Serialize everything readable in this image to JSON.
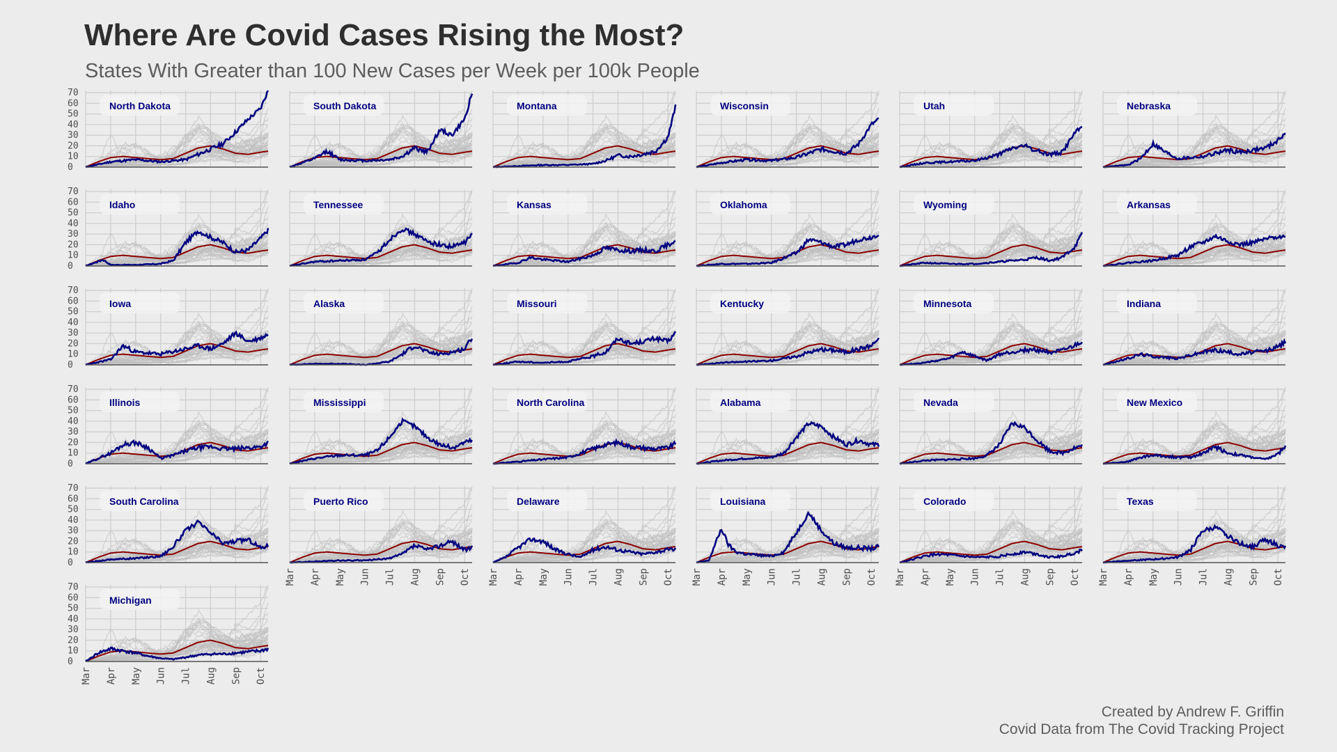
{
  "title": "Where Are Covid Cases Rising the Most?",
  "subtitle": "States With Greater than 100 New Cases per Week per 100k People",
  "caption": {
    "line1": "Created by Andrew F. Griffin",
    "line2": "Covid Data from The Covid Tracking Project"
  },
  "chart_data": {
    "type": "line",
    "facet": "small-multiples",
    "ylim": [
      0,
      72
    ],
    "y_ticks": [
      0,
      10,
      20,
      30,
      40,
      50,
      60,
      70
    ],
    "x_ticks": [
      "Mar",
      "Apr",
      "May",
      "Jun",
      "Jul",
      "Aug",
      "Sep",
      "Oct"
    ],
    "grid": true,
    "colors": {
      "highlight": "#000080",
      "average": "#8b0000",
      "background_states": "#bdbdbd",
      "panel_label_box": "#f3f3f3"
    },
    "states": [
      {
        "name": "North Dakota",
        "x": [
          0,
          1,
          2,
          3,
          4,
          4.5,
          5,
          5.5,
          6,
          6.5,
          7,
          7.3
        ],
        "values": [
          0,
          5,
          7,
          5,
          7,
          12,
          17,
          22,
          33,
          45,
          55,
          72
        ]
      },
      {
        "name": "South Dakota",
        "x": [
          0,
          1,
          1.5,
          2,
          3,
          4,
          4.5,
          5,
          5.5,
          6,
          6.5,
          7,
          7.3
        ],
        "values": [
          0,
          8,
          15,
          7,
          6,
          7,
          10,
          18,
          14,
          35,
          30,
          45,
          70
        ]
      },
      {
        "name": "Montana",
        "x": [
          0,
          1,
          2,
          3,
          4,
          4.5,
          5,
          5.5,
          6,
          6.5,
          7,
          7.3
        ],
        "values": [
          0,
          1,
          2,
          2,
          3,
          6,
          11,
          10,
          12,
          15,
          28,
          57
        ]
      },
      {
        "name": "Wisconsin",
        "x": [
          0,
          1,
          2,
          3,
          4,
          5,
          5.5,
          6,
          6.5,
          7,
          7.3
        ],
        "values": [
          0,
          4,
          7,
          6,
          9,
          17,
          15,
          13,
          22,
          40,
          45
        ]
      },
      {
        "name": "Utah",
        "x": [
          0,
          1,
          2,
          3,
          4,
          4.5,
          5,
          5.5,
          6,
          6.5,
          7,
          7.3
        ],
        "values": [
          0,
          4,
          5,
          6,
          12,
          18,
          20,
          15,
          12,
          14,
          32,
          38
        ]
      },
      {
        "name": "Nebraska",
        "x": [
          0,
          1,
          1.5,
          2,
          2.5,
          3,
          4,
          5,
          5.5,
          6,
          6.5,
          7,
          7.3
        ],
        "values": [
          0,
          2,
          8,
          22,
          14,
          8,
          10,
          16,
          14,
          16,
          18,
          25,
          33
        ]
      },
      {
        "name": "Idaho",
        "x": [
          0,
          0.7,
          1,
          2,
          3,
          3.5,
          4,
          4.5,
          5,
          5.5,
          6,
          6.5,
          7,
          7.3
        ],
        "values": [
          0,
          6,
          1,
          1,
          2,
          5,
          22,
          33,
          27,
          22,
          13,
          15,
          26,
          34
        ]
      },
      {
        "name": "Tennessee",
        "x": [
          0,
          1,
          2,
          3,
          3.5,
          4,
          4.5,
          5,
          5.5,
          6,
          6.5,
          7,
          7.3
        ],
        "values": [
          0,
          4,
          5,
          6,
          12,
          25,
          35,
          30,
          23,
          20,
          18,
          22,
          30
        ]
      },
      {
        "name": "Kansas",
        "x": [
          0,
          1,
          1.5,
          2,
          3,
          4,
          4.5,
          5,
          5.5,
          6,
          6.5,
          7,
          7.3
        ],
        "values": [
          0,
          3,
          8,
          6,
          4,
          10,
          17,
          15,
          14,
          15,
          14,
          20,
          24
        ]
      },
      {
        "name": "Oklahoma",
        "x": [
          0,
          1,
          2,
          3,
          4,
          4.5,
          5,
          5.5,
          6,
          6.5,
          7,
          7.3
        ],
        "values": [
          0,
          2,
          2,
          3,
          12,
          25,
          22,
          18,
          20,
          25,
          27,
          30
        ]
      },
      {
        "name": "Wyoming",
        "x": [
          0,
          1,
          2,
          3,
          4,
          4.5,
          5,
          5.5,
          6,
          6.5,
          7,
          7.3
        ],
        "values": [
          0,
          3,
          2,
          2,
          4,
          5,
          6,
          8,
          5,
          8,
          18,
          30
        ]
      },
      {
        "name": "Arkansas",
        "x": [
          0,
          1,
          2,
          3,
          3.5,
          4,
          4.5,
          5,
          5.5,
          6,
          6.5,
          7,
          7.3
        ],
        "values": [
          0,
          3,
          5,
          10,
          18,
          22,
          28,
          23,
          20,
          22,
          25,
          28,
          27
        ]
      },
      {
        "name": "Iowa",
        "x": [
          0,
          1,
          1.5,
          2,
          3,
          4,
          4.5,
          5,
          5.5,
          6,
          6.5,
          7,
          7.3
        ],
        "values": [
          0,
          5,
          18,
          12,
          10,
          15,
          18,
          15,
          20,
          30,
          22,
          25,
          29
        ]
      },
      {
        "name": "Alaska",
        "x": [
          0,
          1,
          2,
          3,
          4,
          4.5,
          5,
          5.5,
          6,
          6.5,
          7,
          7.3
        ],
        "values": [
          0,
          1,
          1,
          0,
          3,
          10,
          18,
          12,
          10,
          12,
          15,
          26
        ]
      },
      {
        "name": "Missouri",
        "x": [
          0,
          1,
          2,
          3,
          4,
          4.5,
          5,
          5.5,
          6,
          6.5,
          7,
          7.3
        ],
        "values": [
          0,
          3,
          2,
          3,
          8,
          12,
          25,
          20,
          22,
          25,
          22,
          30
        ]
      },
      {
        "name": "Kentucky",
        "x": [
          0,
          1,
          2,
          3,
          4,
          4.5,
          5,
          5.5,
          6,
          6.5,
          7,
          7.3
        ],
        "values": [
          0,
          2,
          3,
          4,
          8,
          12,
          14,
          14,
          12,
          15,
          18,
          25
        ]
      },
      {
        "name": "Minnesota",
        "x": [
          0,
          1,
          2,
          2.5,
          3,
          3.5,
          4,
          4.5,
          5,
          5.5,
          6,
          6.5,
          7,
          7.3
        ],
        "values": [
          0,
          2,
          6,
          12,
          8,
          4,
          10,
          12,
          14,
          14,
          12,
          13,
          18,
          22
        ]
      },
      {
        "name": "Indiana",
        "x": [
          0,
          1,
          1.5,
          2,
          3,
          4,
          4.5,
          5,
          5.5,
          6,
          6.5,
          7,
          7.3
        ],
        "values": [
          0,
          6,
          10,
          8,
          6,
          12,
          14,
          12,
          10,
          12,
          13,
          17,
          22
        ]
      },
      {
        "name": "Illinois",
        "x": [
          0,
          0.5,
          1,
          1.5,
          2,
          2.5,
          3,
          3.5,
          4,
          4.5,
          5,
          5.5,
          6,
          6.5,
          7,
          7.3
        ],
        "values": [
          0,
          5,
          10,
          18,
          20,
          15,
          5,
          8,
          12,
          15,
          16,
          14,
          14,
          15,
          16,
          20
        ]
      },
      {
        "name": "Mississippi",
        "x": [
          0,
          1,
          2,
          3,
          3.5,
          4,
          4.5,
          5,
          5.5,
          6,
          6.5,
          7,
          7.3
        ],
        "values": [
          0,
          5,
          8,
          8,
          12,
          25,
          40,
          35,
          25,
          18,
          15,
          20,
          22
        ]
      },
      {
        "name": "North Carolina",
        "x": [
          0,
          1,
          2,
          3,
          4,
          4.5,
          5,
          5.5,
          6,
          6.5,
          7,
          7.3
        ],
        "values": [
          0,
          2,
          4,
          6,
          14,
          18,
          20,
          16,
          15,
          14,
          15,
          19
        ]
      },
      {
        "name": "Alabama",
        "x": [
          0,
          1,
          2,
          3,
          3.5,
          4,
          4.5,
          5,
          5.5,
          6,
          6.5,
          7,
          7.3
        ],
        "values": [
          0,
          3,
          5,
          6,
          10,
          25,
          38,
          35,
          25,
          18,
          22,
          18,
          18
        ]
      },
      {
        "name": "Nevada",
        "x": [
          0,
          1,
          2,
          3,
          3.5,
          4,
          4.5,
          5,
          5.5,
          6,
          6.5,
          7,
          7.3
        ],
        "values": [
          0,
          3,
          4,
          5,
          8,
          18,
          38,
          34,
          22,
          12,
          10,
          15,
          17
        ]
      },
      {
        "name": "New Mexico",
        "x": [
          0,
          1,
          1.5,
          2,
          3,
          3.5,
          4,
          4.5,
          5,
          5.5,
          6,
          6.5,
          7,
          7.3
        ],
        "values": [
          0,
          2,
          6,
          8,
          6,
          6,
          10,
          16,
          10,
          8,
          6,
          4,
          9,
          17
        ]
      },
      {
        "name": "South Carolina",
        "x": [
          0,
          1,
          2,
          3,
          3.5,
          4,
          4.5,
          5,
          5.5,
          6,
          6.5,
          7,
          7.3
        ],
        "values": [
          0,
          3,
          4,
          6,
          15,
          30,
          38,
          28,
          18,
          20,
          22,
          14,
          16
        ]
      },
      {
        "name": "Puerto Rico",
        "x": [
          0,
          1,
          2,
          3,
          4,
          4.5,
          5,
          5.5,
          6,
          6.5,
          7,
          7.3
        ],
        "values": [
          0,
          1,
          2,
          2,
          4,
          8,
          16,
          12,
          16,
          20,
          12,
          14
        ]
      },
      {
        "name": "Delaware",
        "x": [
          0,
          0.5,
          1,
          1.5,
          2,
          2.5,
          3,
          3.5,
          4,
          4.5,
          5,
          5.5,
          6,
          6.5,
          7,
          7.3
        ],
        "values": [
          0,
          5,
          14,
          22,
          20,
          12,
          8,
          5,
          12,
          15,
          12,
          10,
          8,
          10,
          12,
          13
        ]
      },
      {
        "name": "Louisiana",
        "x": [
          0,
          0.5,
          1,
          1.3,
          1.6,
          2,
          3,
          3.5,
          4,
          4.5,
          5,
          5.5,
          6,
          6.5,
          7,
          7.3
        ],
        "values": [
          0,
          2,
          32,
          16,
          10,
          8,
          6,
          10,
          28,
          47,
          30,
          18,
          14,
          14,
          13,
          15
        ]
      },
      {
        "name": "Colorado",
        "x": [
          0,
          1,
          1.5,
          2,
          2.5,
          3,
          3.5,
          4,
          4.5,
          5,
          5.5,
          6,
          6.5,
          7,
          7.3
        ],
        "values": [
          0,
          6,
          8,
          7,
          6,
          5,
          5,
          6,
          8,
          10,
          8,
          5,
          6,
          9,
          12
        ]
      },
      {
        "name": "Texas",
        "x": [
          0,
          1,
          2,
          3,
          3.5,
          4,
          4.5,
          5,
          5.5,
          6,
          6.5,
          7,
          7.3
        ],
        "values": [
          0,
          2,
          3,
          5,
          12,
          30,
          33,
          25,
          18,
          15,
          22,
          16,
          14
        ]
      },
      {
        "name": "Michigan",
        "x": [
          0,
          0.5,
          1,
          1.5,
          2,
          2.5,
          3,
          3.5,
          4,
          4.5,
          5,
          5.5,
          6,
          6.5,
          7,
          7.3
        ],
        "values": [
          0,
          8,
          12,
          10,
          8,
          5,
          3,
          2,
          4,
          6,
          7,
          7,
          8,
          9,
          10,
          12
        ]
      }
    ],
    "average_series": {
      "x": [
        0,
        0.5,
        1,
        1.5,
        2,
        2.5,
        3,
        3.5,
        4,
        4.5,
        5,
        5.5,
        6,
        6.5,
        7,
        7.3
      ],
      "values": [
        0,
        5,
        9,
        10,
        9,
        8,
        7,
        8,
        13,
        18,
        20,
        17,
        13,
        12,
        14,
        15
      ]
    }
  }
}
